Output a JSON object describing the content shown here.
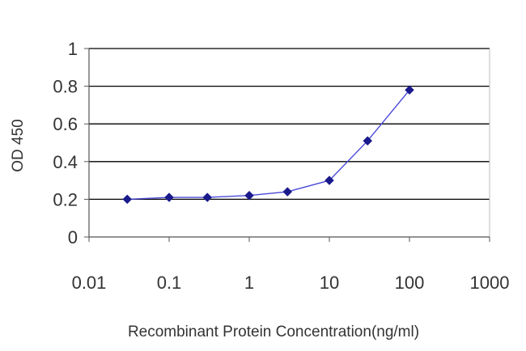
{
  "chart_data": {
    "type": "line",
    "x_scale": "log",
    "xlabel": "Recombinant Protein Concentration(ng/ml)",
    "ylabel": "OD 450",
    "xlim": [
      0.01,
      1000
    ],
    "ylim": [
      0,
      1
    ],
    "x_ticks": [
      {
        "value": 0.01,
        "label": "0.01"
      },
      {
        "value": 0.1,
        "label": "0.1"
      },
      {
        "value": 1,
        "label": "1"
      },
      {
        "value": 10,
        "label": "10"
      },
      {
        "value": 100,
        "label": "100"
      },
      {
        "value": 1000,
        "label": "1000"
      }
    ],
    "y_ticks": [
      {
        "value": 0,
        "label": "0"
      },
      {
        "value": 0.2,
        "label": "0.2"
      },
      {
        "value": 0.4,
        "label": "0.4"
      },
      {
        "value": 0.6,
        "label": "0.6"
      },
      {
        "value": 0.8,
        "label": "0.8"
      },
      {
        "value": 1,
        "label": "1"
      }
    ],
    "grid": "horizontal",
    "series": [
      {
        "x": [
          0.03,
          0.1,
          0.3,
          1,
          3,
          10,
          30,
          100
        ],
        "y": [
          0.2,
          0.21,
          0.21,
          0.22,
          0.24,
          0.3,
          0.51,
          0.78
        ]
      }
    ],
    "colors": {
      "line": "#4a4ad8",
      "marker": "#1a1a8c",
      "grid": "#000000",
      "axis": "#555555"
    }
  }
}
